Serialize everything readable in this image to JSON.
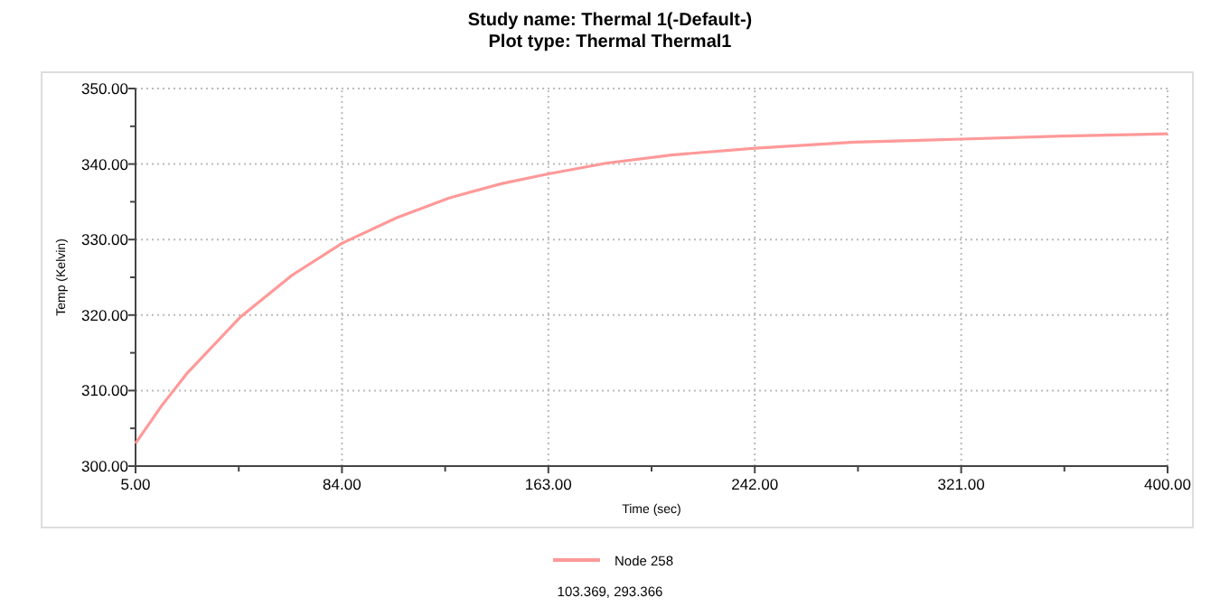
{
  "chart_data": {
    "type": "line",
    "title": "Study name: Thermal 1(-Default-)",
    "subtitle": "Plot type: Thermal Thermal1",
    "xlabel": "Time (sec)",
    "ylabel": "Temp (Kelvin)",
    "xlim": [
      5,
      400
    ],
    "ylim": [
      300,
      350
    ],
    "xticks": [
      {
        "value": 5,
        "label": "5.00"
      },
      {
        "value": 44.5,
        "label": null
      },
      {
        "value": 84,
        "label": "84.00"
      },
      {
        "value": 123.5,
        "label": null
      },
      {
        "value": 163,
        "label": "163.00"
      },
      {
        "value": 202.5,
        "label": null
      },
      {
        "value": 242,
        "label": "242.00"
      },
      {
        "value": 281.5,
        "label": null
      },
      {
        "value": 321,
        "label": "321.00"
      },
      {
        "value": 360.5,
        "label": null
      },
      {
        "value": 400,
        "label": "400.00"
      }
    ],
    "yticks": [
      {
        "value": 300,
        "label": "300.00"
      },
      {
        "value": 305,
        "label": null
      },
      {
        "value": 310,
        "label": "310.00"
      },
      {
        "value": 315,
        "label": null
      },
      {
        "value": 320,
        "label": "320.00"
      },
      {
        "value": 325,
        "label": null
      },
      {
        "value": 330,
        "label": "330.00"
      },
      {
        "value": 335,
        "label": null
      },
      {
        "value": 340,
        "label": "340.00"
      },
      {
        "value": 345,
        "label": null
      },
      {
        "value": 350,
        "label": "350.00"
      }
    ],
    "grid": true,
    "legend": "bottom",
    "line_style": "solid",
    "marker": "none",
    "x": [
      5,
      15,
      25,
      45,
      65,
      84,
      105,
      125,
      145,
      163,
      185,
      210,
      242,
      280,
      321,
      360,
      400
    ],
    "series": [
      {
        "name": "Node 258",
        "color": "#ff9999",
        "values": [
          303.0,
          308.0,
          312.4,
          319.7,
          325.3,
          329.5,
          332.9,
          335.5,
          337.4,
          338.7,
          340.1,
          341.2,
          342.1,
          342.9,
          343.3,
          343.7,
          344.0
        ]
      }
    ],
    "annotations": [
      "103.369, 293.366"
    ]
  }
}
